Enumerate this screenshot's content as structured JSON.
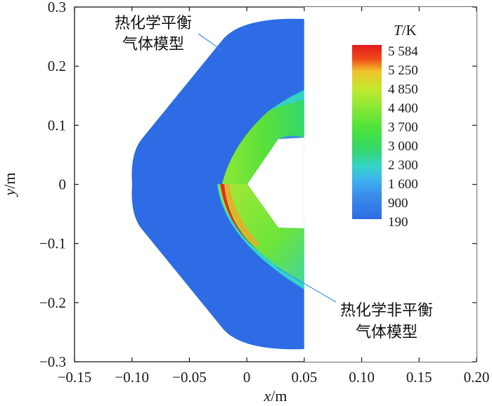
{
  "chart_data": {
    "type": "heatmap",
    "title": "",
    "xlabel": {
      "var": "x",
      "unit": "/m"
    },
    "ylabel": {
      "var": "y",
      "unit": "/m"
    },
    "xlim": [
      -0.15,
      0.2
    ],
    "ylim": [
      -0.3,
      0.3
    ],
    "xticks": [
      -0.15,
      -0.1,
      -0.05,
      0,
      0.05,
      0.1,
      0.15,
      0.2
    ],
    "xtick_labels": [
      "−0.15",
      "−0.10",
      "−0.05",
      "0",
      "0.05",
      "0.10",
      "0.15",
      "0.20"
    ],
    "yticks": [
      0.3,
      0.2,
      0.1,
      0,
      -0.1,
      -0.2,
      -0.3
    ],
    "ytick_labels": [
      "0.3",
      "0.2",
      "0.1",
      "0",
      "−0.1",
      "−0.2",
      "−0.3"
    ],
    "colorbar": {
      "title_var": "T",
      "title_unit": "/K",
      "levels": [
        "5 584",
        "5 250",
        "4 850",
        "4 400",
        "3 700",
        "3 000",
        "2 300",
        "1 600",
        "900",
        "190"
      ],
      "values": [
        5584,
        5250,
        4850,
        4400,
        3700,
        3000,
        2300,
        1600,
        900,
        190
      ],
      "colors": [
        "#e51b1b",
        "#f0cf2a",
        "#c4e82e",
        "#8ee835",
        "#4be33a",
        "#33d86a",
        "#33d3c9",
        "#3fb0f0",
        "#3a8eea",
        "#2d6ce4"
      ]
    },
    "regions": [
      {
        "name": "热化学平衡气体模型",
        "half": "upper",
        "freestream_T": 190
      },
      {
        "name": "热化学非平衡气体模型",
        "half": "lower",
        "freestream_T": 190,
        "peak_T": 5584
      }
    ],
    "annotations": [
      {
        "text_lines": [
          "热化学平衡",
          "气体模型"
        ]
      },
      {
        "text_lines": [
          "热化学非平衡",
          "气体模型"
        ]
      }
    ],
    "colors": {
      "freestream": "#2d6ce4",
      "shock_layer": "#5be03a",
      "hot_edge": "#e0301a"
    }
  }
}
